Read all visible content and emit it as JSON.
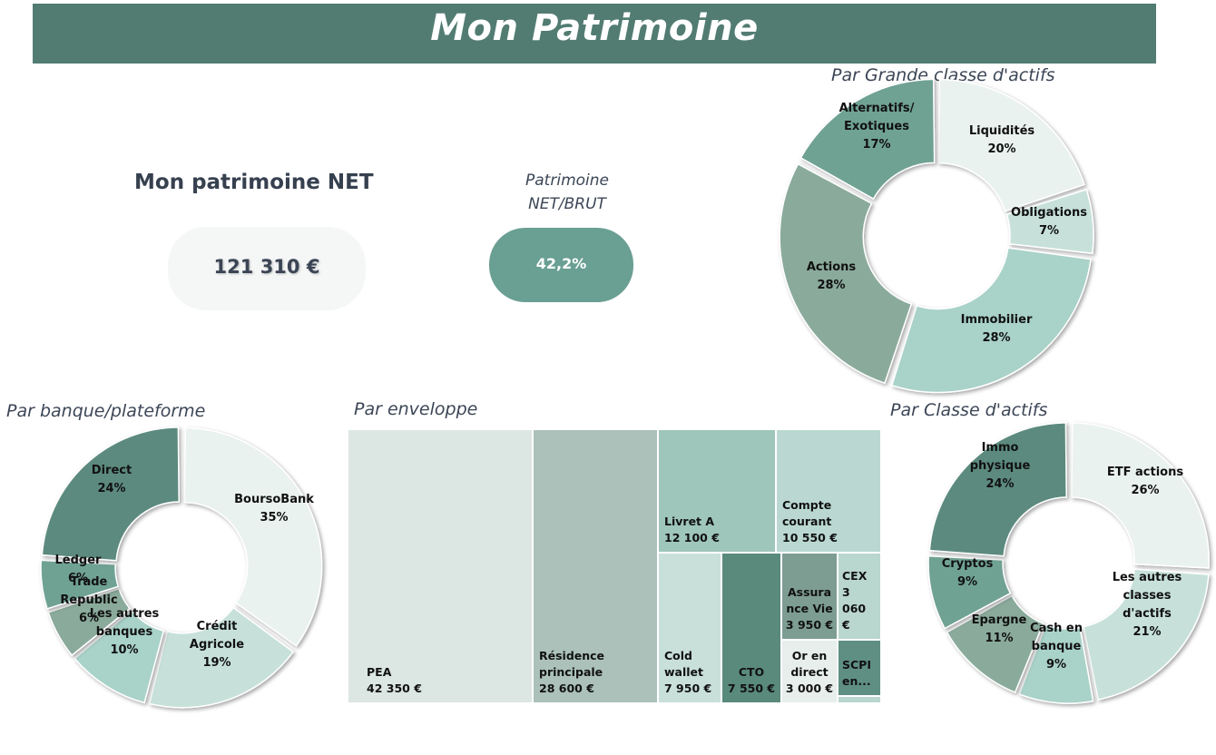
{
  "header": {
    "title": "Mon Patrimoine"
  },
  "net": {
    "label": "Mon patrimoine NET",
    "value": "121 310 €"
  },
  "ratio": {
    "label_line1": "Patrimoine",
    "label_line2": "NET/BRUT",
    "value": "42,2%"
  },
  "colors": {
    "header": "#527c72",
    "pill": "#6a9f93",
    "very_light": "#eaf2ef",
    "light": "#c7e1da",
    "mid_light": "#a9d2c8",
    "mid": "#8aaa9c",
    "mid_dark": "#6fa294",
    "dark": "#5b8a7e"
  },
  "chart_data": [
    {
      "type": "pie",
      "donut": true,
      "title": "Par Grande classe d'actifs",
      "slices": [
        {
          "label_lines": [
            "Liquidités"
          ],
          "pct_label": "20%",
          "value": 20,
          "color": "#eaf2ef"
        },
        {
          "label_lines": [
            "Obligations"
          ],
          "pct_label": "7%",
          "value": 7,
          "color": "#c7e1da"
        },
        {
          "label_lines": [
            "Immobilier"
          ],
          "pct_label": "28%",
          "value": 28,
          "color": "#a9d2c8"
        },
        {
          "label_lines": [
            "Actions"
          ],
          "pct_label": "28%",
          "value": 28,
          "color": "#8aaa9c"
        },
        {
          "label_lines": [
            "Alternatifs/",
            "Exotiques"
          ],
          "pct_label": "17%",
          "value": 17,
          "color": "#6fa294"
        }
      ]
    },
    {
      "type": "pie",
      "donut": true,
      "title": "Par banque/plateforme",
      "slices": [
        {
          "label_lines": [
            "BoursoBank"
          ],
          "pct_label": "35%",
          "value": 35,
          "color": "#eaf2ef"
        },
        {
          "label_lines": [
            "Crédit",
            "Agricole"
          ],
          "pct_label": "19%",
          "value": 19,
          "color": "#c7e1da"
        },
        {
          "label_lines": [
            "Les autres",
            "banques"
          ],
          "pct_label": "10%",
          "value": 10,
          "color": "#a9d2c8"
        },
        {
          "label_lines": [
            "Trade",
            "Republic"
          ],
          "pct_label": "6%",
          "value": 6,
          "color": "#8aaa9c"
        },
        {
          "label_lines": [
            "Ledger"
          ],
          "pct_label": "6%",
          "value": 6,
          "color": "#6fa294"
        },
        {
          "label_lines": [
            "Direct"
          ],
          "pct_label": "24%",
          "value": 24,
          "color": "#5b8a7e"
        }
      ]
    },
    {
      "type": "pie",
      "donut": true,
      "title": "Par Classe d'actifs",
      "slices": [
        {
          "label_lines": [
            "ETF actions"
          ],
          "pct_label": "26%",
          "value": 26,
          "color": "#eaf2ef"
        },
        {
          "label_lines": [
            "Les autres",
            "classes",
            "d'actifs"
          ],
          "pct_label": "21%",
          "value": 21,
          "color": "#c7e1da"
        },
        {
          "label_lines": [
            "Cash en",
            "banque"
          ],
          "pct_label": "9%",
          "value": 9,
          "color": "#a9d2c8"
        },
        {
          "label_lines": [
            "Epargne"
          ],
          "pct_label": "11%",
          "value": 11,
          "color": "#8aaa9c"
        },
        {
          "label_lines": [
            "Cryptos"
          ],
          "pct_label": "9%",
          "value": 9,
          "color": "#6fa294"
        },
        {
          "label_lines": [
            "Immo",
            "physique"
          ],
          "pct_label": "24%",
          "value": 24,
          "color": "#5b8a7e"
        }
      ]
    },
    {
      "type": "treemap",
      "title": "Par enveloppe",
      "items": [
        {
          "label": "PEA",
          "value_label": "42 350 €",
          "value": 42350,
          "color": "#dce6e3"
        },
        {
          "label": "Résidence principale",
          "value_label": "28 600 €",
          "value": 28600,
          "color": "#abc1ba"
        },
        {
          "label": "Livret A",
          "value_label": "12 100 €",
          "value": 12100,
          "color": "#9ec6bb"
        },
        {
          "label": "Compte courant",
          "value_label": "10 550 €",
          "value": 10550,
          "color": "#bad8d1"
        },
        {
          "label": "Cold wallet",
          "value_label": "7 950 €",
          "value": 7950,
          "color": "#c9dfda"
        },
        {
          "label": "CTO",
          "value_label": "7 550 €",
          "value": 7550,
          "color": "#5a8a7c"
        },
        {
          "label": "Assurance Vie",
          "value_label": "3 950 €",
          "value": 3950,
          "color": "#7d9d93"
        },
        {
          "label": "CEX",
          "value_label": "3 060 €",
          "value": 3060,
          "color": "#b9d6cf"
        },
        {
          "label": "Or en direct",
          "value_label": "3 000 €",
          "value": 3000,
          "color": "#e7eeec"
        },
        {
          "label": "SCPI",
          "value_label": "",
          "value": null,
          "color": "#5f8f83"
        }
      ]
    }
  ]
}
